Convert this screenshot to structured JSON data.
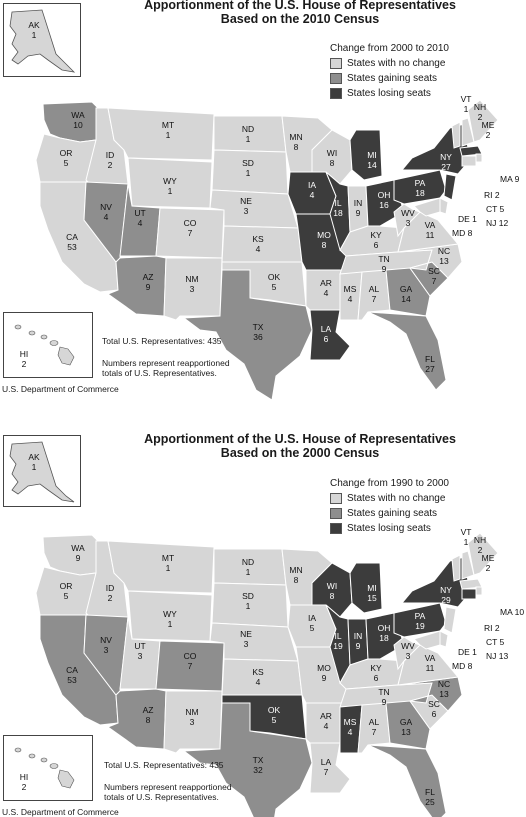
{
  "colors": {
    "no_change": "#d6d6d6",
    "gaining": "#8e8e8e",
    "losing": "#3c3c3c",
    "border": "#ffffff"
  },
  "panels": [
    {
      "title_line1": "Apportionment of the U.S. House of Representatives",
      "title_line2": "Based on the 2010 Census",
      "legend_title": "Change from 2000 to 2010",
      "legend": [
        "States with no change",
        "States gaining seats",
        "States losing seats"
      ],
      "total": "Total U.S. Representatives: 435",
      "note_line1": "Numbers represent reapportioned",
      "note_line2": "totals of U.S. Representatives.",
      "credit": "U.S. Department of Commerce",
      "alaska": {
        "abbr": "AK",
        "seats": "1"
      },
      "hawaii": {
        "abbr": "HI",
        "seats": "2"
      },
      "states": [
        {
          "abbr": "WA",
          "seats": "10",
          "status": "gaining"
        },
        {
          "abbr": "OR",
          "seats": "5",
          "status": "no_change"
        },
        {
          "abbr": "CA",
          "seats": "53",
          "status": "no_change"
        },
        {
          "abbr": "ID",
          "seats": "2",
          "status": "no_change"
        },
        {
          "abbr": "NV",
          "seats": "4",
          "status": "gaining"
        },
        {
          "abbr": "MT",
          "seats": "1",
          "status": "no_change"
        },
        {
          "abbr": "WY",
          "seats": "1",
          "status": "no_change"
        },
        {
          "abbr": "UT",
          "seats": "4",
          "status": "gaining"
        },
        {
          "abbr": "AZ",
          "seats": "9",
          "status": "gaining"
        },
        {
          "abbr": "CO",
          "seats": "7",
          "status": "no_change"
        },
        {
          "abbr": "NM",
          "seats": "3",
          "status": "no_change"
        },
        {
          "abbr": "ND",
          "seats": "1",
          "status": "no_change"
        },
        {
          "abbr": "SD",
          "seats": "1",
          "status": "no_change"
        },
        {
          "abbr": "NE",
          "seats": "3",
          "status": "no_change"
        },
        {
          "abbr": "KS",
          "seats": "4",
          "status": "no_change"
        },
        {
          "abbr": "OK",
          "seats": "5",
          "status": "no_change"
        },
        {
          "abbr": "TX",
          "seats": "36",
          "status": "gaining"
        },
        {
          "abbr": "MN",
          "seats": "8",
          "status": "no_change"
        },
        {
          "abbr": "IA",
          "seats": "4",
          "status": "losing"
        },
        {
          "abbr": "MO",
          "seats": "8",
          "status": "losing"
        },
        {
          "abbr": "AR",
          "seats": "4",
          "status": "no_change"
        },
        {
          "abbr": "LA",
          "seats": "6",
          "status": "losing"
        },
        {
          "abbr": "WI",
          "seats": "8",
          "status": "no_change"
        },
        {
          "abbr": "IL",
          "seats": "18",
          "status": "losing"
        },
        {
          "abbr": "MI",
          "seats": "14",
          "status": "losing"
        },
        {
          "abbr": "IN",
          "seats": "9",
          "status": "no_change"
        },
        {
          "abbr": "OH",
          "seats": "16",
          "status": "losing"
        },
        {
          "abbr": "KY",
          "seats": "6",
          "status": "no_change"
        },
        {
          "abbr": "TN",
          "seats": "9",
          "status": "no_change"
        },
        {
          "abbr": "MS",
          "seats": "4",
          "status": "no_change"
        },
        {
          "abbr": "AL",
          "seats": "7",
          "status": "no_change"
        },
        {
          "abbr": "GA",
          "seats": "14",
          "status": "gaining"
        },
        {
          "abbr": "FL",
          "seats": "27",
          "status": "gaining"
        },
        {
          "abbr": "SC",
          "seats": "7",
          "status": "gaining"
        },
        {
          "abbr": "NC",
          "seats": "13",
          "status": "no_change"
        },
        {
          "abbr": "VA",
          "seats": "11",
          "status": "no_change"
        },
        {
          "abbr": "WV",
          "seats": "3",
          "status": "no_change"
        },
        {
          "abbr": "PA",
          "seats": "18",
          "status": "losing"
        },
        {
          "abbr": "NY",
          "seats": "27",
          "status": "losing"
        },
        {
          "abbr": "VT",
          "seats": "1",
          "status": "no_change"
        },
        {
          "abbr": "NH",
          "seats": "2",
          "status": "no_change"
        },
        {
          "abbr": "ME",
          "seats": "2",
          "status": "no_change"
        },
        {
          "abbr": "MA",
          "seats": "9",
          "status": "losing"
        },
        {
          "abbr": "RI",
          "seats": "2",
          "status": "no_change"
        },
        {
          "abbr": "CT",
          "seats": "5",
          "status": "no_change"
        },
        {
          "abbr": "NJ",
          "seats": "12",
          "status": "losing"
        },
        {
          "abbr": "DE",
          "seats": "1",
          "status": "no_change"
        },
        {
          "abbr": "MD",
          "seats": "8",
          "status": "no_change"
        }
      ],
      "callouts": [
        "MA 9",
        "RI 2",
        "CT 5",
        "NJ 12",
        "DE 1",
        "MD 8"
      ]
    },
    {
      "title_line1": "Apportionment of the U.S. House of Representatives",
      "title_line2": "Based on the 2000 Census",
      "legend_title": "Change from 1990 to 2000",
      "legend": [
        "States with no change",
        "States gaining seats",
        "States losing seats"
      ],
      "total": "Total U.S. Representatives: 435",
      "note_line1": "Numbers represent reapportioned",
      "note_line2": "totals of U.S. Representatives.",
      "credit": "U.S. Department of Commerce",
      "alaska": {
        "abbr": "AK",
        "seats": "1"
      },
      "hawaii": {
        "abbr": "HI",
        "seats": "2"
      },
      "states": [
        {
          "abbr": "WA",
          "seats": "9",
          "status": "no_change"
        },
        {
          "abbr": "OR",
          "seats": "5",
          "status": "no_change"
        },
        {
          "abbr": "CA",
          "seats": "53",
          "status": "gaining"
        },
        {
          "abbr": "ID",
          "seats": "2",
          "status": "no_change"
        },
        {
          "abbr": "NV",
          "seats": "3",
          "status": "gaining"
        },
        {
          "abbr": "MT",
          "seats": "1",
          "status": "no_change"
        },
        {
          "abbr": "WY",
          "seats": "1",
          "status": "no_change"
        },
        {
          "abbr": "UT",
          "seats": "3",
          "status": "no_change"
        },
        {
          "abbr": "AZ",
          "seats": "8",
          "status": "gaining"
        },
        {
          "abbr": "CO",
          "seats": "7",
          "status": "gaining"
        },
        {
          "abbr": "NM",
          "seats": "3",
          "status": "no_change"
        },
        {
          "abbr": "ND",
          "seats": "1",
          "status": "no_change"
        },
        {
          "abbr": "SD",
          "seats": "1",
          "status": "no_change"
        },
        {
          "abbr": "NE",
          "seats": "3",
          "status": "no_change"
        },
        {
          "abbr": "KS",
          "seats": "4",
          "status": "no_change"
        },
        {
          "abbr": "OK",
          "seats": "5",
          "status": "losing"
        },
        {
          "abbr": "TX",
          "seats": "32",
          "status": "gaining"
        },
        {
          "abbr": "MN",
          "seats": "8",
          "status": "no_change"
        },
        {
          "abbr": "IA",
          "seats": "5",
          "status": "no_change"
        },
        {
          "abbr": "MO",
          "seats": "9",
          "status": "no_change"
        },
        {
          "abbr": "AR",
          "seats": "4",
          "status": "no_change"
        },
        {
          "abbr": "LA",
          "seats": "7",
          "status": "no_change"
        },
        {
          "abbr": "WI",
          "seats": "8",
          "status": "losing"
        },
        {
          "abbr": "IL",
          "seats": "19",
          "status": "losing"
        },
        {
          "abbr": "MI",
          "seats": "15",
          "status": "losing"
        },
        {
          "abbr": "IN",
          "seats": "9",
          "status": "losing"
        },
        {
          "abbr": "OH",
          "seats": "18",
          "status": "losing"
        },
        {
          "abbr": "KY",
          "seats": "6",
          "status": "no_change"
        },
        {
          "abbr": "TN",
          "seats": "9",
          "status": "no_change"
        },
        {
          "abbr": "MS",
          "seats": "4",
          "status": "losing"
        },
        {
          "abbr": "AL",
          "seats": "7",
          "status": "no_change"
        },
        {
          "abbr": "GA",
          "seats": "13",
          "status": "gaining"
        },
        {
          "abbr": "FL",
          "seats": "25",
          "status": "gaining"
        },
        {
          "abbr": "SC",
          "seats": "6",
          "status": "no_change"
        },
        {
          "abbr": "NC",
          "seats": "13",
          "status": "gaining"
        },
        {
          "abbr": "VA",
          "seats": "11",
          "status": "no_change"
        },
        {
          "abbr": "WV",
          "seats": "3",
          "status": "no_change"
        },
        {
          "abbr": "PA",
          "seats": "19",
          "status": "losing"
        },
        {
          "abbr": "NY",
          "seats": "29",
          "status": "losing"
        },
        {
          "abbr": "VT",
          "seats": "1",
          "status": "no_change"
        },
        {
          "abbr": "NH",
          "seats": "2",
          "status": "no_change"
        },
        {
          "abbr": "ME",
          "seats": "2",
          "status": "no_change"
        },
        {
          "abbr": "MA",
          "seats": "10",
          "status": "no_change"
        },
        {
          "abbr": "RI",
          "seats": "2",
          "status": "no_change"
        },
        {
          "abbr": "CT",
          "seats": "5",
          "status": "losing"
        },
        {
          "abbr": "NJ",
          "seats": "13",
          "status": "no_change"
        },
        {
          "abbr": "DE",
          "seats": "1",
          "status": "no_change"
        },
        {
          "abbr": "MD",
          "seats": "8",
          "status": "no_change"
        }
      ],
      "callouts": [
        "MA 10",
        "RI 2",
        "CT 5",
        "NJ 13",
        "DE 1",
        "MD 8"
      ]
    }
  ]
}
